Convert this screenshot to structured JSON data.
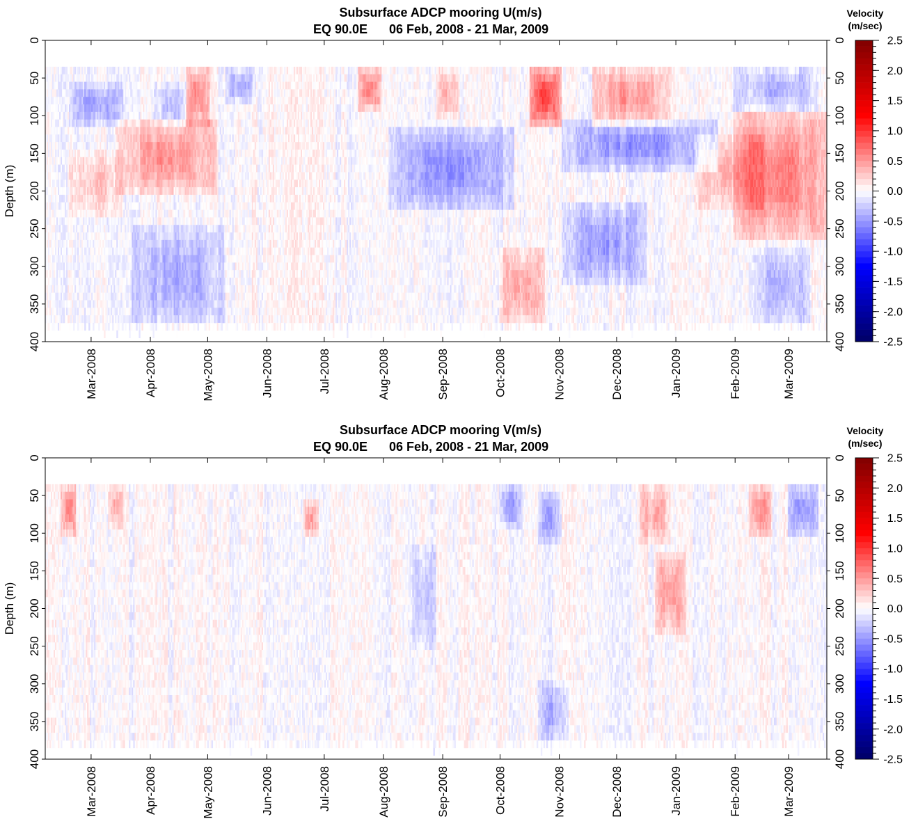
{
  "chart_data": [
    {
      "type": "heatmap",
      "title": "Subsurface ADCP mooring U(m/s)",
      "subtitle_location": "EQ 90.0E",
      "subtitle_dates": "06 Feb, 2008 - 21 Mar, 2009",
      "ylabel": "Depth (m)",
      "ylim": [
        0,
        400
      ],
      "y_inverted": true,
      "y_ticks": [
        "0",
        "50",
        "100",
        "150",
        "200",
        "250",
        "300",
        "350",
        "400"
      ],
      "x_ticks": [
        "Mar-2008",
        "Apr-2008",
        "May-2008",
        "Jun-2008",
        "Jul-2008",
        "Aug-2008",
        "Sep-2008",
        "Oct-2008",
        "Nov-2008",
        "Dec-2008",
        "Jan-2009",
        "Feb-2009",
        "Mar-2009"
      ],
      "x_range": [
        "2008-02-06",
        "2009-03-21"
      ],
      "depth_coverage": [
        35,
        375
      ],
      "colorbar": {
        "title_line1": "Velocity",
        "title_line2": "(m/sec)",
        "ticks": [
          "2.5",
          "2.0",
          "1.5",
          "1.0",
          "0.5",
          "0.0",
          "-0.5",
          "-1.0",
          "-1.5",
          "-2.0",
          "-2.5"
        ],
        "range": [
          -2.5,
          2.5
        ],
        "colors": [
          "#000066",
          "#0000ff",
          "#ffffff",
          "#ff0000",
          "#800000"
        ]
      },
      "features": [
        {
          "t0": 0.09,
          "t1": 0.22,
          "d0": 110,
          "d1": 200,
          "v": 0.5
        },
        {
          "t0": 0.03,
          "t1": 0.1,
          "d0": 150,
          "d1": 230,
          "v": 0.3
        },
        {
          "t0": 0.18,
          "t1": 0.21,
          "d0": 40,
          "d1": 110,
          "v": 0.6
        },
        {
          "t0": 0.4,
          "t1": 0.43,
          "d0": 40,
          "d1": 90,
          "v": 0.6
        },
        {
          "t0": 0.5,
          "t1": 0.53,
          "d0": 40,
          "d1": 100,
          "v": 0.4
        },
        {
          "t0": 0.62,
          "t1": 0.66,
          "d0": 40,
          "d1": 110,
          "v": 0.9
        },
        {
          "t0": 0.7,
          "t1": 0.8,
          "d0": 40,
          "d1": 110,
          "v": 0.5
        },
        {
          "t0": 0.88,
          "t1": 1.0,
          "d0": 100,
          "d1": 260,
          "v": 0.6
        },
        {
          "t0": 0.83,
          "t1": 0.92,
          "d0": 130,
          "d1": 220,
          "v": 0.35
        },
        {
          "t0": 0.58,
          "t1": 0.64,
          "d0": 280,
          "d1": 375,
          "v": 0.4
        },
        {
          "t0": 0.03,
          "t1": 0.1,
          "d0": 60,
          "d1": 110,
          "v": -0.4
        },
        {
          "t0": 0.14,
          "t1": 0.18,
          "d0": 60,
          "d1": 110,
          "v": -0.3
        },
        {
          "t0": 0.23,
          "t1": 0.27,
          "d0": 40,
          "d1": 80,
          "v": -0.4
        },
        {
          "t0": 0.44,
          "t1": 0.6,
          "d0": 120,
          "d1": 220,
          "v": -0.5
        },
        {
          "t0": 0.66,
          "t1": 0.86,
          "d0": 110,
          "d1": 170,
          "v": -0.5
        },
        {
          "t0": 0.66,
          "t1": 0.77,
          "d0": 220,
          "d1": 320,
          "v": -0.45
        },
        {
          "t0": 0.11,
          "t1": 0.23,
          "d0": 250,
          "d1": 375,
          "v": -0.4
        },
        {
          "t0": 0.88,
          "t1": 0.99,
          "d0": 40,
          "d1": 90,
          "v": -0.35
        },
        {
          "t0": 0.9,
          "t1": 0.98,
          "d0": 280,
          "d1": 375,
          "v": -0.35
        }
      ]
    },
    {
      "type": "heatmap",
      "title": "Subsurface ADCP mooring V(m/s)",
      "subtitle_location": "EQ 90.0E",
      "subtitle_dates": "06 Feb, 2008 - 21 Mar, 2009",
      "ylabel": "Depth (m)",
      "ylim": [
        0,
        400
      ],
      "y_inverted": true,
      "y_ticks": [
        "0",
        "50",
        "100",
        "150",
        "200",
        "250",
        "300",
        "350",
        "400"
      ],
      "x_ticks": [
        "Mar-2008",
        "Apr-2008",
        "May-2008",
        "Jun-2008",
        "Jul-2008",
        "Aug-2008",
        "Sep-2008",
        "Oct-2008",
        "Nov-2008",
        "Dec-2008",
        "Jan-2009",
        "Feb-2009",
        "Mar-2009"
      ],
      "x_range": [
        "2008-02-06",
        "2009-03-21"
      ],
      "depth_coverage": [
        35,
        375
      ],
      "colorbar": {
        "title_line1": "Velocity",
        "title_line2": "(m/sec)",
        "ticks": [
          "2.5",
          "2.0",
          "1.5",
          "1.0",
          "0.5",
          "0.0",
          "-0.5",
          "-1.0",
          "-1.5",
          "-2.0",
          "-2.5"
        ],
        "range": [
          -2.5,
          2.5
        ],
        "colors": [
          "#000066",
          "#0000ff",
          "#ffffff",
          "#ff0000",
          "#800000"
        ]
      },
      "features": [
        {
          "t0": 0.02,
          "t1": 0.04,
          "d0": 40,
          "d1": 100,
          "v": 0.6
        },
        {
          "t0": 0.08,
          "t1": 0.1,
          "d0": 40,
          "d1": 90,
          "v": 0.4
        },
        {
          "t0": 0.33,
          "t1": 0.35,
          "d0": 60,
          "d1": 100,
          "v": 0.5
        },
        {
          "t0": 0.76,
          "t1": 0.8,
          "d0": 40,
          "d1": 110,
          "v": 0.4
        },
        {
          "t0": 0.78,
          "t1": 0.82,
          "d0": 130,
          "d1": 230,
          "v": 0.45
        },
        {
          "t0": 0.9,
          "t1": 0.93,
          "d0": 40,
          "d1": 100,
          "v": 0.5
        },
        {
          "t0": 0.58,
          "t1": 0.61,
          "d0": 40,
          "d1": 90,
          "v": -0.45
        },
        {
          "t0": 0.63,
          "t1": 0.66,
          "d0": 50,
          "d1": 110,
          "v": -0.4
        },
        {
          "t0": 0.95,
          "t1": 0.99,
          "d0": 40,
          "d1": 100,
          "v": -0.5
        },
        {
          "t0": 0.47,
          "t1": 0.5,
          "d0": 120,
          "d1": 250,
          "v": -0.3
        },
        {
          "t0": 0.63,
          "t1": 0.67,
          "d0": 300,
          "d1": 375,
          "v": -0.35
        }
      ]
    }
  ]
}
